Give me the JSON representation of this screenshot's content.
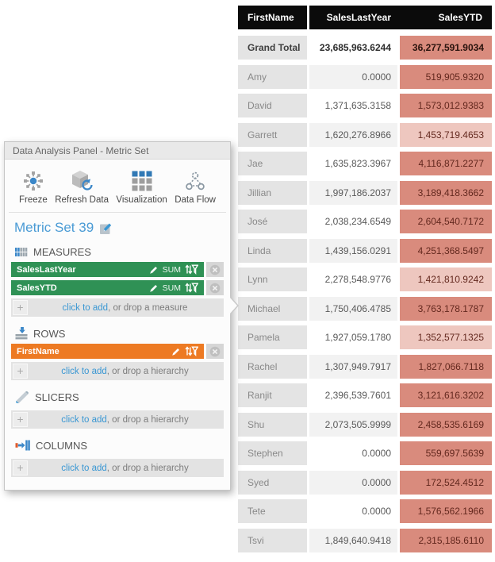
{
  "colors": {
    "accent_blue": "#3a97d3",
    "measure_green": "#2f9155",
    "hierarchy_orange": "#ed7a23",
    "ytd_salmon": "#d98b7d",
    "ytd_salmon_light": "#eec7bf",
    "header_black": "#0b0b0b"
  },
  "panel": {
    "title": "Data Analysis Panel - Metric Set",
    "toolbar": [
      {
        "label": "Freeze",
        "icon": "freeze-icon"
      },
      {
        "label": "Refresh Data",
        "icon": "refresh-data-icon"
      },
      {
        "label": "Visualization",
        "icon": "visualization-icon"
      },
      {
        "label": "Data Flow",
        "icon": "data-flow-icon"
      }
    ],
    "metric_set_name": "Metric Set 39",
    "sections": {
      "measures": {
        "label": "MEASURES",
        "icon": "measures-icon",
        "items": [
          {
            "name": "SalesLastYear",
            "aggregator": "SUM"
          },
          {
            "name": "SalesYTD",
            "aggregator": "SUM"
          }
        ],
        "add_link": "click to add",
        "add_rest": ", or drop a measure"
      },
      "rows": {
        "label": "ROWS",
        "icon": "rows-icon",
        "items": [
          {
            "name": "FirstName"
          }
        ],
        "add_link": "click to add",
        "add_rest": ", or drop a hierarchy"
      },
      "slicers": {
        "label": "SLICERS",
        "icon": "slicers-icon",
        "add_link": "click to add",
        "add_rest": ", or drop a hierarchy"
      },
      "columns": {
        "label": "COLUMNS",
        "icon": "columns-icon",
        "add_link": "click to add",
        "add_rest": ", or drop a hierarchy"
      }
    }
  },
  "table": {
    "columns": [
      "FirstName",
      "SalesLastYear",
      "SalesYTD"
    ],
    "rows": [
      {
        "first_name": "Grand Total",
        "sales_last_year": "23,685,963.6244",
        "sales_ytd": "36,277,591.9034",
        "is_total": true
      },
      {
        "first_name": "Amy",
        "sales_last_year": "0.0000",
        "sales_ytd": "519,905.9320"
      },
      {
        "first_name": "David",
        "sales_last_year": "1,371,635.3158",
        "sales_ytd": "1,573,012.9383"
      },
      {
        "first_name": "Garrett",
        "sales_last_year": "1,620,276.8966",
        "sales_ytd": "1,453,719.4653"
      },
      {
        "first_name": "Jae",
        "sales_last_year": "1,635,823.3967",
        "sales_ytd": "4,116,871.2277"
      },
      {
        "first_name": "Jillian",
        "sales_last_year": "1,997,186.2037",
        "sales_ytd": "3,189,418.3662"
      },
      {
        "first_name": "José",
        "sales_last_year": "2,038,234.6549",
        "sales_ytd": "2,604,540.7172"
      },
      {
        "first_name": "Linda",
        "sales_last_year": "1,439,156.0291",
        "sales_ytd": "4,251,368.5497"
      },
      {
        "first_name": "Lynn",
        "sales_last_year": "2,278,548.9776",
        "sales_ytd": "1,421,810.9242"
      },
      {
        "first_name": "Michael",
        "sales_last_year": "1,750,406.4785",
        "sales_ytd": "3,763,178.1787"
      },
      {
        "first_name": "Pamela",
        "sales_last_year": "1,927,059.1780",
        "sales_ytd": "1,352,577.1325"
      },
      {
        "first_name": "Rachel",
        "sales_last_year": "1,307,949.7917",
        "sales_ytd": "1,827,066.7118"
      },
      {
        "first_name": "Ranjit",
        "sales_last_year": "2,396,539.7601",
        "sales_ytd": "3,121,616.3202"
      },
      {
        "first_name": "Shu",
        "sales_last_year": "2,073,505.9999",
        "sales_ytd": "2,458,535.6169"
      },
      {
        "first_name": "Stephen",
        "sales_last_year": "0.0000",
        "sales_ytd": "559,697.5639"
      },
      {
        "first_name": "Syed",
        "sales_last_year": "0.0000",
        "sales_ytd": "172,524.4512"
      },
      {
        "first_name": "Tete",
        "sales_last_year": "0.0000",
        "sales_ytd": "1,576,562.1966"
      },
      {
        "first_name": "Tsvi",
        "sales_last_year": "1,849,640.9418",
        "sales_ytd": "2,315,185.6110"
      }
    ]
  }
}
